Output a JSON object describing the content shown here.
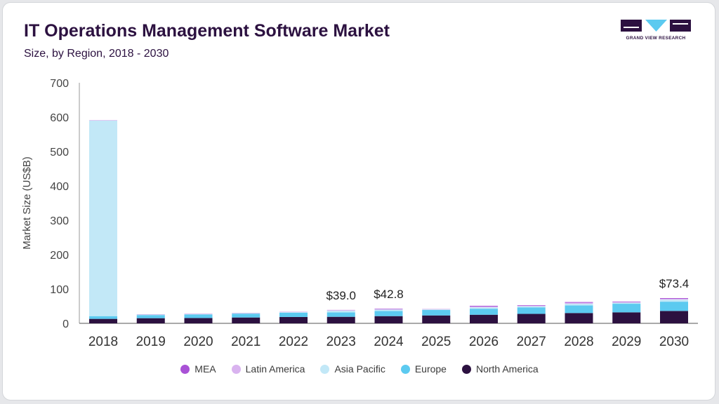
{
  "header": {
    "title": "IT Operations Management Software Market",
    "subtitle": "Size, by Region, 2018 - 2030"
  },
  "brand": {
    "name": "GRAND VIEW RESEARCH",
    "colors": {
      "dark": "#2c1140",
      "accent": "#5ccaf0"
    }
  },
  "chart_data": {
    "type": "bar",
    "stacked": true,
    "title": "IT Operations Management Software Market",
    "subtitle": "Size, by Region, 2018 - 2030",
    "xlabel": "",
    "ylabel": "Market Size (US$B)",
    "ylim": [
      0,
      700
    ],
    "yticks": [
      0,
      100,
      200,
      300,
      400,
      500,
      600,
      700
    ],
    "grid": false,
    "legend_position": "bottom",
    "categories": [
      "2018",
      "2019",
      "2020",
      "2021",
      "2022",
      "2023",
      "2024",
      "2025",
      "2026",
      "2027",
      "2028",
      "2029",
      "2030"
    ],
    "series": [
      {
        "name": "North America",
        "color": "#2c1140",
        "values": [
          13,
          15,
          15.5,
          17,
          18.5,
          19,
          21,
          23,
          25,
          27.5,
          30,
          32,
          36
        ]
      },
      {
        "name": "Europe",
        "color": "#5ccaf0",
        "values": [
          8,
          9,
          10,
          11,
          12.5,
          13,
          15,
          16,
          17.5,
          19,
          22,
          25,
          27
        ]
      },
      {
        "name": "Asia Pacific",
        "color": "#c2e8f7",
        "values": [
          569,
          1.5,
          1.5,
          1.5,
          1.5,
          5,
          4,
          1.5,
          4,
          3,
          5,
          3,
          6
        ]
      },
      {
        "name": "Latin America",
        "color": "#d9b3ef",
        "values": [
          0.5,
          0.5,
          0.5,
          0.5,
          0.5,
          1.5,
          1.5,
          0.5,
          2.5,
          2,
          3,
          2,
          2.4
        ]
      },
      {
        "name": "MEA",
        "color": "#a952d6",
        "values": [
          0.5,
          0.5,
          0.5,
          0.5,
          0.5,
          0.5,
          1.3,
          0.5,
          2,
          1.5,
          2,
          1.5,
          2
        ]
      }
    ],
    "annotations": [
      {
        "category": "2023",
        "label": "$39.0"
      },
      {
        "category": "2024",
        "label": "$42.8"
      },
      {
        "category": "2030",
        "label": "$73.4"
      }
    ],
    "legend_order": [
      "MEA",
      "Latin America",
      "Asia Pacific",
      "Europe",
      "North America"
    ]
  }
}
